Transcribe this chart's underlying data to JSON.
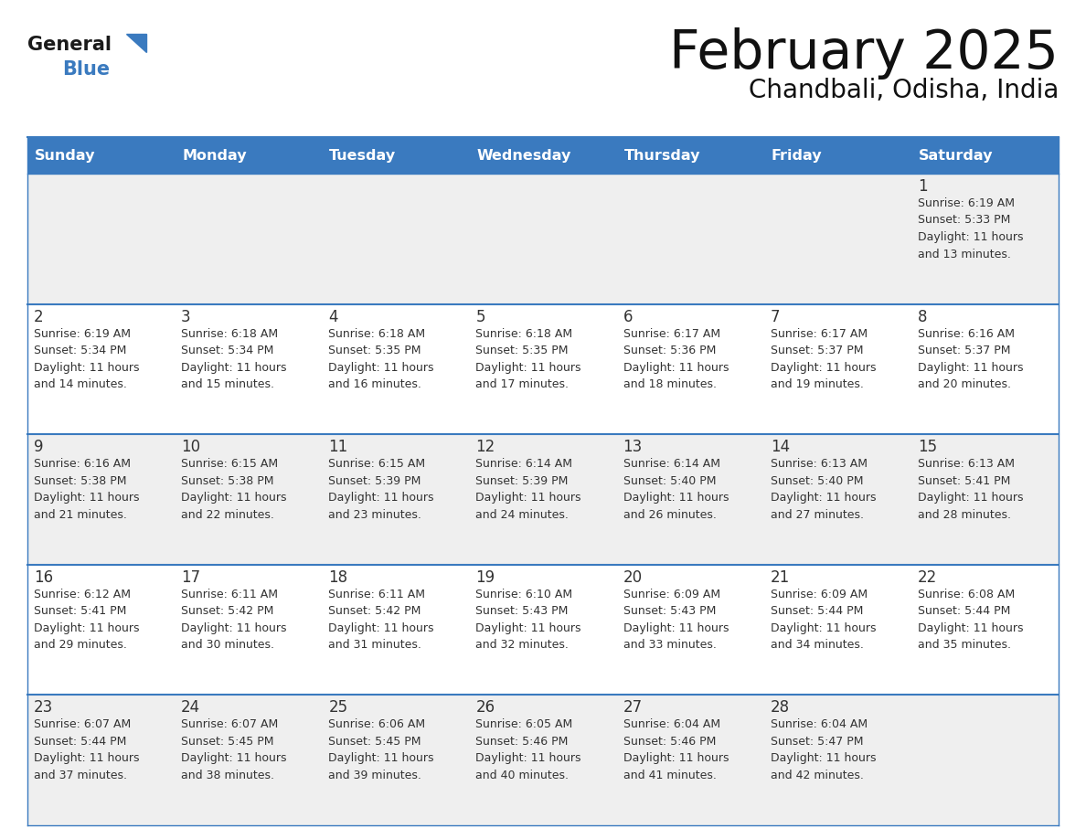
{
  "title": "February 2025",
  "subtitle": "Chandbali, Odisha, India",
  "header_color": "#3a7abf",
  "header_text_color": "#ffffff",
  "day_names": [
    "Sunday",
    "Monday",
    "Tuesday",
    "Wednesday",
    "Thursday",
    "Friday",
    "Saturday"
  ],
  "bg_color": "#ffffff",
  "cell_bg_odd": "#efefef",
  "cell_bg_even": "#ffffff",
  "border_color": "#3a7abf",
  "day_num_color": "#333333",
  "text_color": "#333333",
  "calendar_data": [
    [
      {
        "day": 0,
        "info": ""
      },
      {
        "day": 0,
        "info": ""
      },
      {
        "day": 0,
        "info": ""
      },
      {
        "day": 0,
        "info": ""
      },
      {
        "day": 0,
        "info": ""
      },
      {
        "day": 0,
        "info": ""
      },
      {
        "day": 1,
        "info": "Sunrise: 6:19 AM\nSunset: 5:33 PM\nDaylight: 11 hours\nand 13 minutes."
      }
    ],
    [
      {
        "day": 2,
        "info": "Sunrise: 6:19 AM\nSunset: 5:34 PM\nDaylight: 11 hours\nand 14 minutes."
      },
      {
        "day": 3,
        "info": "Sunrise: 6:18 AM\nSunset: 5:34 PM\nDaylight: 11 hours\nand 15 minutes."
      },
      {
        "day": 4,
        "info": "Sunrise: 6:18 AM\nSunset: 5:35 PM\nDaylight: 11 hours\nand 16 minutes."
      },
      {
        "day": 5,
        "info": "Sunrise: 6:18 AM\nSunset: 5:35 PM\nDaylight: 11 hours\nand 17 minutes."
      },
      {
        "day": 6,
        "info": "Sunrise: 6:17 AM\nSunset: 5:36 PM\nDaylight: 11 hours\nand 18 minutes."
      },
      {
        "day": 7,
        "info": "Sunrise: 6:17 AM\nSunset: 5:37 PM\nDaylight: 11 hours\nand 19 minutes."
      },
      {
        "day": 8,
        "info": "Sunrise: 6:16 AM\nSunset: 5:37 PM\nDaylight: 11 hours\nand 20 minutes."
      }
    ],
    [
      {
        "day": 9,
        "info": "Sunrise: 6:16 AM\nSunset: 5:38 PM\nDaylight: 11 hours\nand 21 minutes."
      },
      {
        "day": 10,
        "info": "Sunrise: 6:15 AM\nSunset: 5:38 PM\nDaylight: 11 hours\nand 22 minutes."
      },
      {
        "day": 11,
        "info": "Sunrise: 6:15 AM\nSunset: 5:39 PM\nDaylight: 11 hours\nand 23 minutes."
      },
      {
        "day": 12,
        "info": "Sunrise: 6:14 AM\nSunset: 5:39 PM\nDaylight: 11 hours\nand 24 minutes."
      },
      {
        "day": 13,
        "info": "Sunrise: 6:14 AM\nSunset: 5:40 PM\nDaylight: 11 hours\nand 26 minutes."
      },
      {
        "day": 14,
        "info": "Sunrise: 6:13 AM\nSunset: 5:40 PM\nDaylight: 11 hours\nand 27 minutes."
      },
      {
        "day": 15,
        "info": "Sunrise: 6:13 AM\nSunset: 5:41 PM\nDaylight: 11 hours\nand 28 minutes."
      }
    ],
    [
      {
        "day": 16,
        "info": "Sunrise: 6:12 AM\nSunset: 5:41 PM\nDaylight: 11 hours\nand 29 minutes."
      },
      {
        "day": 17,
        "info": "Sunrise: 6:11 AM\nSunset: 5:42 PM\nDaylight: 11 hours\nand 30 minutes."
      },
      {
        "day": 18,
        "info": "Sunrise: 6:11 AM\nSunset: 5:42 PM\nDaylight: 11 hours\nand 31 minutes."
      },
      {
        "day": 19,
        "info": "Sunrise: 6:10 AM\nSunset: 5:43 PM\nDaylight: 11 hours\nand 32 minutes."
      },
      {
        "day": 20,
        "info": "Sunrise: 6:09 AM\nSunset: 5:43 PM\nDaylight: 11 hours\nand 33 minutes."
      },
      {
        "day": 21,
        "info": "Sunrise: 6:09 AM\nSunset: 5:44 PM\nDaylight: 11 hours\nand 34 minutes."
      },
      {
        "day": 22,
        "info": "Sunrise: 6:08 AM\nSunset: 5:44 PM\nDaylight: 11 hours\nand 35 minutes."
      }
    ],
    [
      {
        "day": 23,
        "info": "Sunrise: 6:07 AM\nSunset: 5:44 PM\nDaylight: 11 hours\nand 37 minutes."
      },
      {
        "day": 24,
        "info": "Sunrise: 6:07 AM\nSunset: 5:45 PM\nDaylight: 11 hours\nand 38 minutes."
      },
      {
        "day": 25,
        "info": "Sunrise: 6:06 AM\nSunset: 5:45 PM\nDaylight: 11 hours\nand 39 minutes."
      },
      {
        "day": 26,
        "info": "Sunrise: 6:05 AM\nSunset: 5:46 PM\nDaylight: 11 hours\nand 40 minutes."
      },
      {
        "day": 27,
        "info": "Sunrise: 6:04 AM\nSunset: 5:46 PM\nDaylight: 11 hours\nand 41 minutes."
      },
      {
        "day": 28,
        "info": "Sunrise: 6:04 AM\nSunset: 5:47 PM\nDaylight: 11 hours\nand 42 minutes."
      },
      {
        "day": 0,
        "info": ""
      }
    ]
  ],
  "logo_general_color": "#1a1a1a",
  "logo_blue_color": "#3a7abf",
  "figsize": [
    11.88,
    9.18
  ],
  "dpi": 100
}
